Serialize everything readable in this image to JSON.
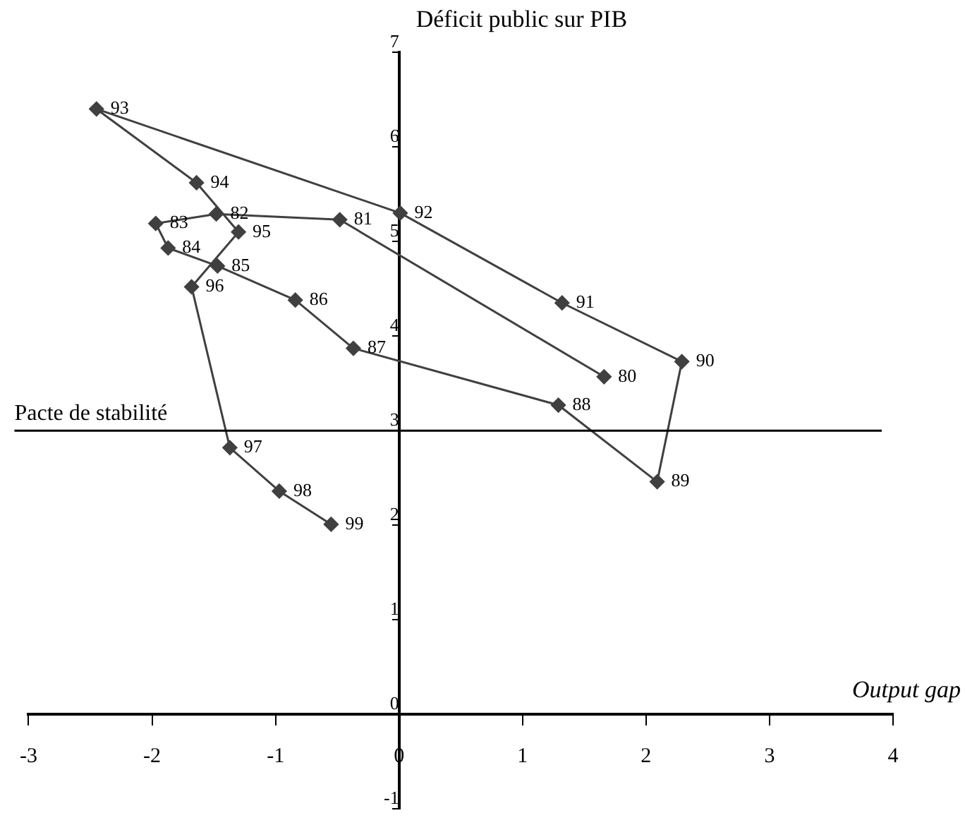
{
  "chart_data": {
    "type": "line",
    "xlabel": "Output gap",
    "ylabel": "Déficit public sur PIB",
    "x": [
      1.66,
      -0.48,
      -1.48,
      -1.97,
      -1.87,
      -1.47,
      -0.84,
      -0.37,
      1.29,
      2.09,
      2.29,
      1.32,
      0.01,
      -2.45,
      -1.64,
      -1.3,
      -1.68,
      -1.37,
      -0.97,
      -0.55
    ],
    "series": [
      {
        "color": "#404040",
        "values": [
          3.57,
          5.23,
          5.29,
          5.19,
          4.93,
          4.74,
          4.38,
          3.87,
          3.27,
          2.46,
          3.73,
          4.35,
          5.3,
          6.4,
          5.62,
          5.1,
          4.52,
          2.82,
          2.36,
          2.01
        ]
      }
    ],
    "xlim": [
      -3,
      4
    ],
    "xticks": [
      -3,
      -2,
      -1,
      0,
      1,
      2,
      3,
      4
    ],
    "ylim": [
      -1,
      7
    ],
    "yticks": [
      -1,
      0,
      1,
      2,
      3,
      4,
      5,
      6,
      7
    ],
    "grid": false,
    "legend": false,
    "marker": "diamond",
    "line_style": "solid",
    "ref_lines": [
      {
        "axis": "y",
        "value": 3,
        "label": "Pacte de stabilité",
        "color": "#000000"
      }
    ],
    "annotations": [
      {
        "text": "80",
        "x": 1.66,
        "y": 3.57
      },
      {
        "text": "81",
        "x": -0.48,
        "y": 5.23
      },
      {
        "text": "82",
        "x": -1.48,
        "y": 5.29
      },
      {
        "text": "83",
        "x": -1.97,
        "y": 5.19
      },
      {
        "text": "84",
        "x": -1.87,
        "y": 4.93
      },
      {
        "text": "85",
        "x": -1.47,
        "y": 4.74
      },
      {
        "text": "86",
        "x": -0.84,
        "y": 4.38
      },
      {
        "text": "87",
        "x": -0.37,
        "y": 3.87
      },
      {
        "text": "88",
        "x": 1.29,
        "y": 3.27
      },
      {
        "text": "89",
        "x": 2.09,
        "y": 2.46
      },
      {
        "text": "90",
        "x": 2.29,
        "y": 3.73
      },
      {
        "text": "91",
        "x": 1.32,
        "y": 4.35
      },
      {
        "text": "92",
        "x": 0.01,
        "y": 5.3
      },
      {
        "text": "93",
        "x": -2.45,
        "y": 6.4
      },
      {
        "text": "94",
        "x": -1.64,
        "y": 5.62
      },
      {
        "text": "95",
        "x": -1.3,
        "y": 5.1
      },
      {
        "text": "96",
        "x": -1.68,
        "y": 4.52
      },
      {
        "text": "97",
        "x": -1.37,
        "y": 2.82
      },
      {
        "text": "98",
        "x": -0.97,
        "y": 2.36
      },
      {
        "text": "99",
        "x": -0.55,
        "y": 2.01
      }
    ]
  }
}
